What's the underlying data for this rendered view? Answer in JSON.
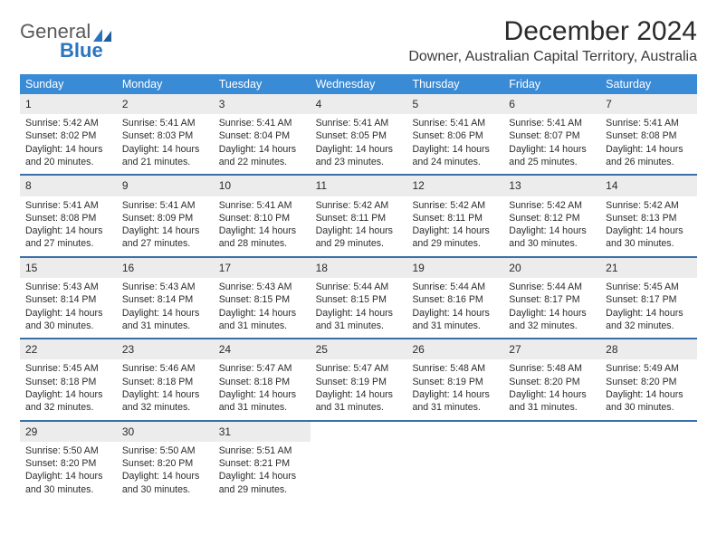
{
  "brand": {
    "word1": "General",
    "word2": "Blue"
  },
  "title": "December 2024",
  "location": "Downer, Australian Capital Territory, Australia",
  "colors": {
    "dow_bg": "#3a8bd6",
    "week_border": "#3a6fa8",
    "daynum_bg": "#ececec",
    "logo_general": "#5a5a5a",
    "logo_blue": "#2b74c0"
  },
  "day_labels": [
    "Sunday",
    "Monday",
    "Tuesday",
    "Wednesday",
    "Thursday",
    "Friday",
    "Saturday"
  ],
  "weeks": [
    [
      {
        "n": "1",
        "sunrise": "5:42 AM",
        "sunset": "8:02 PM",
        "daylight_a": "Daylight: 14 hours",
        "daylight_b": "and 20 minutes."
      },
      {
        "n": "2",
        "sunrise": "5:41 AM",
        "sunset": "8:03 PM",
        "daylight_a": "Daylight: 14 hours",
        "daylight_b": "and 21 minutes."
      },
      {
        "n": "3",
        "sunrise": "5:41 AM",
        "sunset": "8:04 PM",
        "daylight_a": "Daylight: 14 hours",
        "daylight_b": "and 22 minutes."
      },
      {
        "n": "4",
        "sunrise": "5:41 AM",
        "sunset": "8:05 PM",
        "daylight_a": "Daylight: 14 hours",
        "daylight_b": "and 23 minutes."
      },
      {
        "n": "5",
        "sunrise": "5:41 AM",
        "sunset": "8:06 PM",
        "daylight_a": "Daylight: 14 hours",
        "daylight_b": "and 24 minutes."
      },
      {
        "n": "6",
        "sunrise": "5:41 AM",
        "sunset": "8:07 PM",
        "daylight_a": "Daylight: 14 hours",
        "daylight_b": "and 25 minutes."
      },
      {
        "n": "7",
        "sunrise": "5:41 AM",
        "sunset": "8:08 PM",
        "daylight_a": "Daylight: 14 hours",
        "daylight_b": "and 26 minutes."
      }
    ],
    [
      {
        "n": "8",
        "sunrise": "5:41 AM",
        "sunset": "8:08 PM",
        "daylight_a": "Daylight: 14 hours",
        "daylight_b": "and 27 minutes."
      },
      {
        "n": "9",
        "sunrise": "5:41 AM",
        "sunset": "8:09 PM",
        "daylight_a": "Daylight: 14 hours",
        "daylight_b": "and 27 minutes."
      },
      {
        "n": "10",
        "sunrise": "5:41 AM",
        "sunset": "8:10 PM",
        "daylight_a": "Daylight: 14 hours",
        "daylight_b": "and 28 minutes."
      },
      {
        "n": "11",
        "sunrise": "5:42 AM",
        "sunset": "8:11 PM",
        "daylight_a": "Daylight: 14 hours",
        "daylight_b": "and 29 minutes."
      },
      {
        "n": "12",
        "sunrise": "5:42 AM",
        "sunset": "8:11 PM",
        "daylight_a": "Daylight: 14 hours",
        "daylight_b": "and 29 minutes."
      },
      {
        "n": "13",
        "sunrise": "5:42 AM",
        "sunset": "8:12 PM",
        "daylight_a": "Daylight: 14 hours",
        "daylight_b": "and 30 minutes."
      },
      {
        "n": "14",
        "sunrise": "5:42 AM",
        "sunset": "8:13 PM",
        "daylight_a": "Daylight: 14 hours",
        "daylight_b": "and 30 minutes."
      }
    ],
    [
      {
        "n": "15",
        "sunrise": "5:43 AM",
        "sunset": "8:14 PM",
        "daylight_a": "Daylight: 14 hours",
        "daylight_b": "and 30 minutes."
      },
      {
        "n": "16",
        "sunrise": "5:43 AM",
        "sunset": "8:14 PM",
        "daylight_a": "Daylight: 14 hours",
        "daylight_b": "and 31 minutes."
      },
      {
        "n": "17",
        "sunrise": "5:43 AM",
        "sunset": "8:15 PM",
        "daylight_a": "Daylight: 14 hours",
        "daylight_b": "and 31 minutes."
      },
      {
        "n": "18",
        "sunrise": "5:44 AM",
        "sunset": "8:15 PM",
        "daylight_a": "Daylight: 14 hours",
        "daylight_b": "and 31 minutes."
      },
      {
        "n": "19",
        "sunrise": "5:44 AM",
        "sunset": "8:16 PM",
        "daylight_a": "Daylight: 14 hours",
        "daylight_b": "and 31 minutes."
      },
      {
        "n": "20",
        "sunrise": "5:44 AM",
        "sunset": "8:17 PM",
        "daylight_a": "Daylight: 14 hours",
        "daylight_b": "and 32 minutes."
      },
      {
        "n": "21",
        "sunrise": "5:45 AM",
        "sunset": "8:17 PM",
        "daylight_a": "Daylight: 14 hours",
        "daylight_b": "and 32 minutes."
      }
    ],
    [
      {
        "n": "22",
        "sunrise": "5:45 AM",
        "sunset": "8:18 PM",
        "daylight_a": "Daylight: 14 hours",
        "daylight_b": "and 32 minutes."
      },
      {
        "n": "23",
        "sunrise": "5:46 AM",
        "sunset": "8:18 PM",
        "daylight_a": "Daylight: 14 hours",
        "daylight_b": "and 32 minutes."
      },
      {
        "n": "24",
        "sunrise": "5:47 AM",
        "sunset": "8:18 PM",
        "daylight_a": "Daylight: 14 hours",
        "daylight_b": "and 31 minutes."
      },
      {
        "n": "25",
        "sunrise": "5:47 AM",
        "sunset": "8:19 PM",
        "daylight_a": "Daylight: 14 hours",
        "daylight_b": "and 31 minutes."
      },
      {
        "n": "26",
        "sunrise": "5:48 AM",
        "sunset": "8:19 PM",
        "daylight_a": "Daylight: 14 hours",
        "daylight_b": "and 31 minutes."
      },
      {
        "n": "27",
        "sunrise": "5:48 AM",
        "sunset": "8:20 PM",
        "daylight_a": "Daylight: 14 hours",
        "daylight_b": "and 31 minutes."
      },
      {
        "n": "28",
        "sunrise": "5:49 AM",
        "sunset": "8:20 PM",
        "daylight_a": "Daylight: 14 hours",
        "daylight_b": "and 30 minutes."
      }
    ],
    [
      {
        "n": "29",
        "sunrise": "5:50 AM",
        "sunset": "8:20 PM",
        "daylight_a": "Daylight: 14 hours",
        "daylight_b": "and 30 minutes."
      },
      {
        "n": "30",
        "sunrise": "5:50 AM",
        "sunset": "8:20 PM",
        "daylight_a": "Daylight: 14 hours",
        "daylight_b": "and 30 minutes."
      },
      {
        "n": "31",
        "sunrise": "5:51 AM",
        "sunset": "8:21 PM",
        "daylight_a": "Daylight: 14 hours",
        "daylight_b": "and 29 minutes."
      },
      null,
      null,
      null,
      null
    ]
  ],
  "labels": {
    "sunrise": "Sunrise: ",
    "sunset": "Sunset: "
  }
}
